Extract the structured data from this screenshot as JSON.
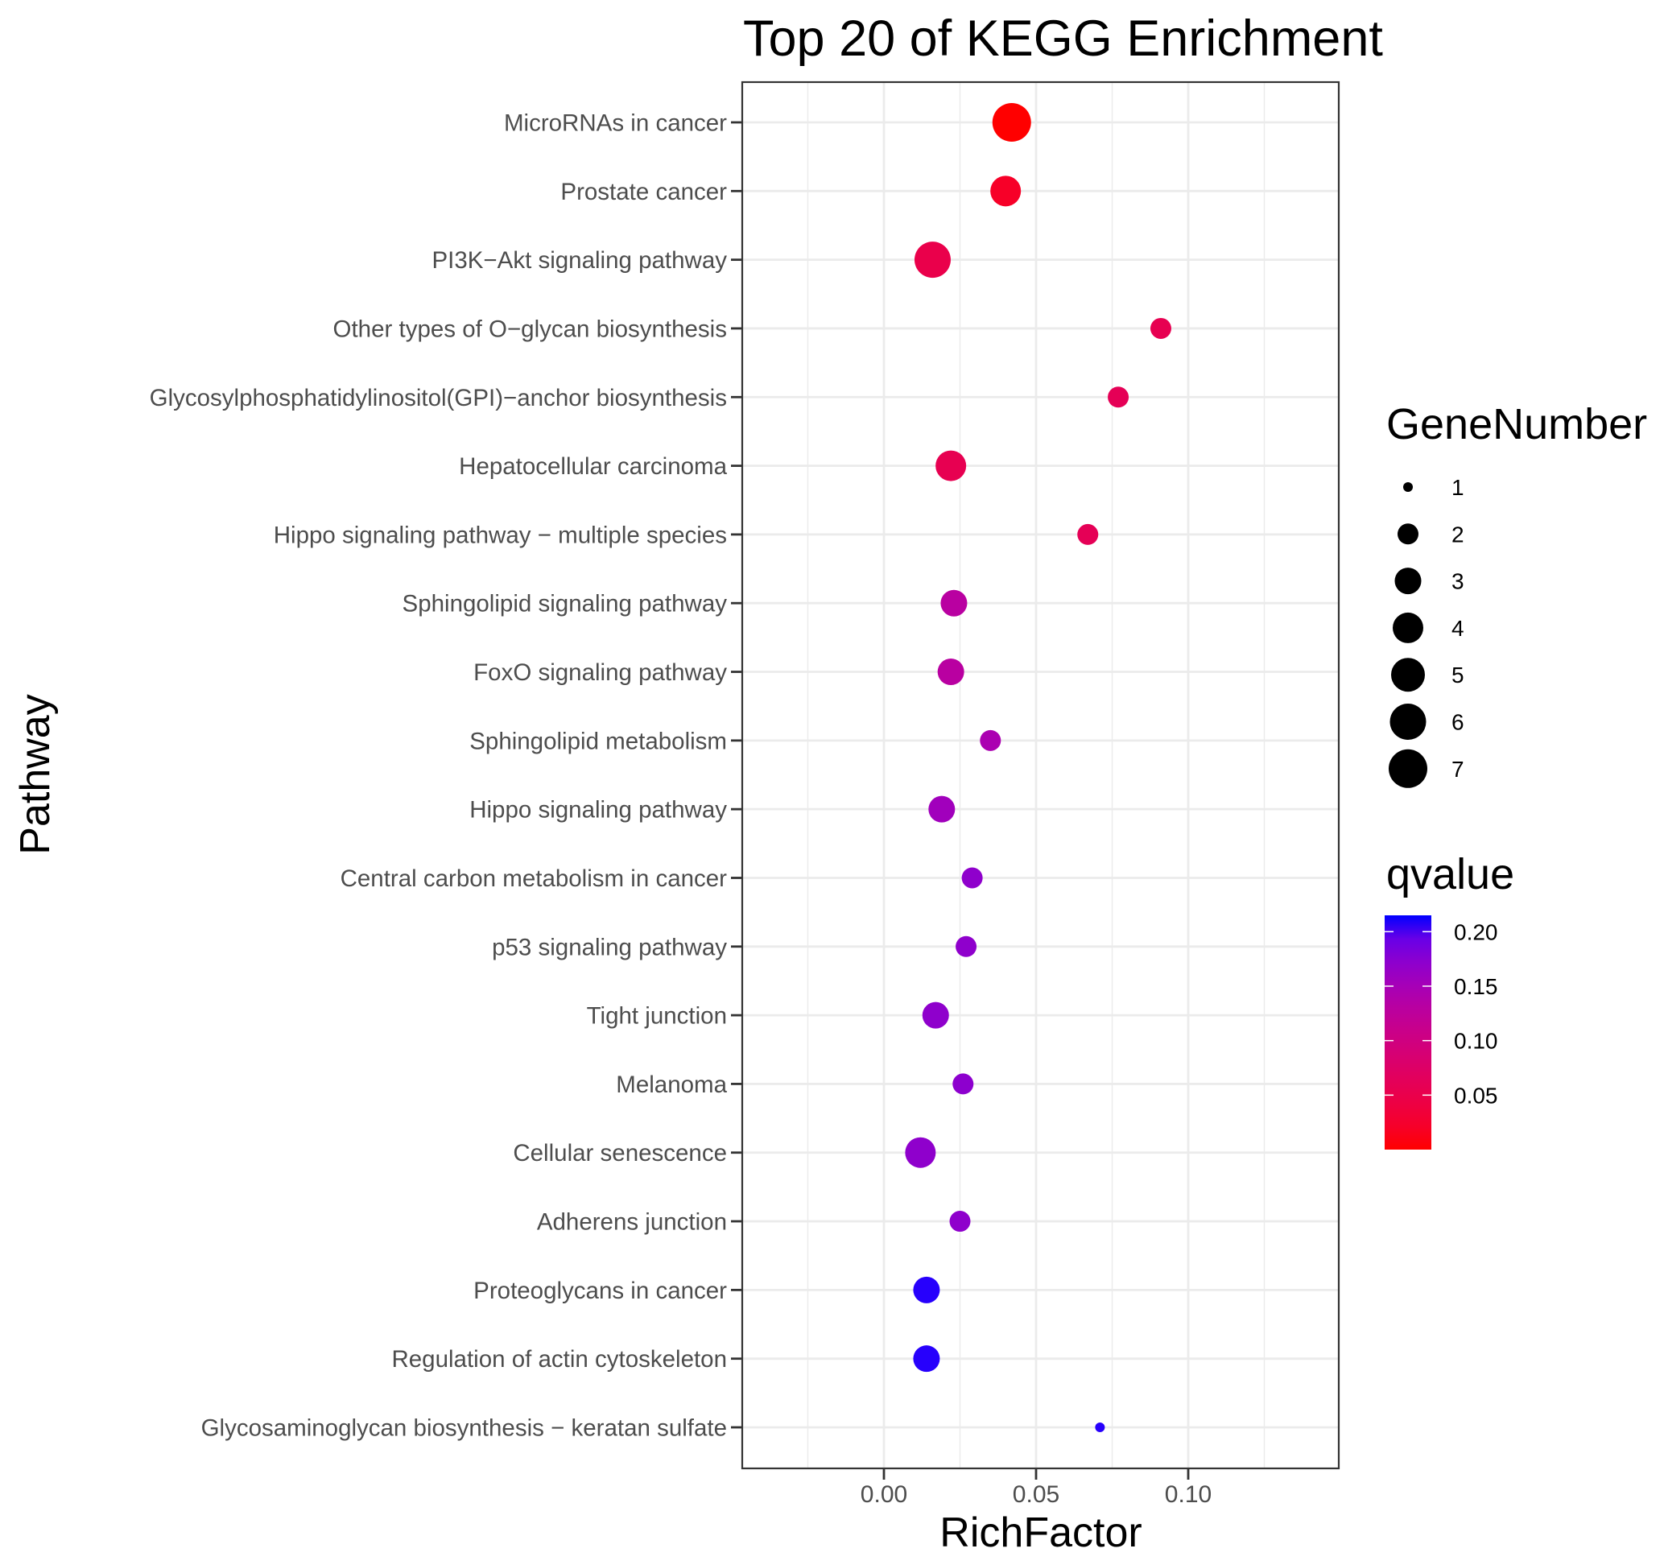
{
  "chart_data": {
    "type": "scatter",
    "title": "Top 20 of KEGG Enrichment",
    "xlabel": "RichFactor",
    "ylabel": "Pathway",
    "xlim": [
      -0.0466,
      0.1495
    ],
    "x_ticks": [
      0.0,
      0.05,
      0.1
    ],
    "x_tick_labels": [
      "0.00",
      "0.05",
      "0.10"
    ],
    "x_minor_ticks": [
      -0.025,
      0.025,
      0.075,
      0.125
    ],
    "grid": true,
    "categories": [
      "MicroRNAs in cancer",
      "Prostate cancer",
      "PI3K−Akt signaling pathway",
      "Other types of O−glycan biosynthesis",
      "Glycosylphosphatidylinositol(GPI)−anchor biosynthesis",
      "Hepatocellular carcinoma",
      "Hippo signaling pathway − multiple species",
      "Sphingolipid signaling pathway",
      "FoxO signaling pathway",
      "Sphingolipid metabolism",
      "Hippo signaling pathway",
      "Central carbon metabolism in cancer",
      "p53 signaling pathway",
      "Tight junction",
      "Melanoma",
      "Cellular senescence",
      "Adherens junction",
      "Proteoglycans in cancer",
      "Regulation of actin cytoskeleton",
      "Glycosaminoglycan biosynthesis − keratan sulfate"
    ],
    "points": [
      {
        "pathway": "MicroRNAs in cancer",
        "rich_factor": 0.042,
        "gene_number": 7,
        "qvalue": 0.0
      },
      {
        "pathway": "Prostate cancer",
        "rich_factor": 0.04,
        "gene_number": 4,
        "qvalue": 0.02
      },
      {
        "pathway": "PI3K−Akt signaling pathway",
        "rich_factor": 0.016,
        "gene_number": 6,
        "qvalue": 0.05
      },
      {
        "pathway": "Other types of O−glycan biosynthesis",
        "rich_factor": 0.091,
        "gene_number": 2,
        "qvalue": 0.055
      },
      {
        "pathway": "Glycosylphosphatidylinositol(GPI)−anchor biosynthesis",
        "rich_factor": 0.077,
        "gene_number": 2,
        "qvalue": 0.06
      },
      {
        "pathway": "Hepatocellular carcinoma",
        "rich_factor": 0.022,
        "gene_number": 4,
        "qvalue": 0.055
      },
      {
        "pathway": "Hippo signaling pathway − multiple species",
        "rich_factor": 0.067,
        "gene_number": 2,
        "qvalue": 0.06
      },
      {
        "pathway": "Sphingolipid signaling pathway",
        "rich_factor": 0.023,
        "gene_number": 3,
        "qvalue": 0.13
      },
      {
        "pathway": "FoxO signaling pathway",
        "rich_factor": 0.022,
        "gene_number": 3,
        "qvalue": 0.13
      },
      {
        "pathway": "Sphingolipid metabolism",
        "rich_factor": 0.035,
        "gene_number": 2,
        "qvalue": 0.145
      },
      {
        "pathway": "Hippo signaling pathway",
        "rich_factor": 0.019,
        "gene_number": 3,
        "qvalue": 0.155
      },
      {
        "pathway": "Central carbon metabolism in cancer",
        "rich_factor": 0.029,
        "gene_number": 2,
        "qvalue": 0.17
      },
      {
        "pathway": "p53 signaling pathway",
        "rich_factor": 0.027,
        "gene_number": 2,
        "qvalue": 0.17
      },
      {
        "pathway": "Tight junction",
        "rich_factor": 0.017,
        "gene_number": 3,
        "qvalue": 0.17
      },
      {
        "pathway": "Melanoma",
        "rich_factor": 0.026,
        "gene_number": 2,
        "qvalue": 0.172
      },
      {
        "pathway": "Cellular senescence",
        "rich_factor": 0.012,
        "gene_number": 4,
        "qvalue": 0.17
      },
      {
        "pathway": "Adherens junction",
        "rich_factor": 0.025,
        "gene_number": 2,
        "qvalue": 0.17
      },
      {
        "pathway": "Proteoglycans in cancer",
        "rich_factor": 0.014,
        "gene_number": 3,
        "qvalue": 0.212
      },
      {
        "pathway": "Regulation of actin cytoskeleton",
        "rich_factor": 0.014,
        "gene_number": 3,
        "qvalue": 0.212
      },
      {
        "pathway": "Glycosaminoglycan biosynthesis − keratan sulfate",
        "rich_factor": 0.071,
        "gene_number": 1,
        "qvalue": 0.212
      }
    ],
    "size_legend": {
      "title": "GeneNumber",
      "values": [
        1,
        2,
        3,
        4,
        5,
        6,
        7
      ],
      "labels": [
        "1",
        "2",
        "3",
        "4",
        "5",
        "6",
        "7"
      ]
    },
    "color_legend": {
      "title": "qvalue",
      "range": [
        0.0,
        0.215
      ],
      "ticks": [
        0.2,
        0.15,
        0.1,
        0.05
      ],
      "tick_labels": [
        "0.20",
        "0.15",
        "0.10",
        "0.05"
      ],
      "low_color": "#FF0000",
      "high_color": "#0000FF"
    },
    "legend_position": "right"
  }
}
